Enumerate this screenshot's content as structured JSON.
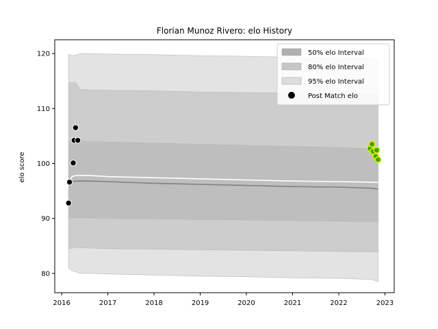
{
  "chart_data": {
    "type": "line",
    "title": "Florian Munoz Rivero: elo History",
    "xlabel": "",
    "ylabel": "elo score",
    "xlim": [
      2015.85,
      2023.2
    ],
    "ylim": [
      76.5,
      122.5
    ],
    "xticks": [
      2016,
      2017,
      2018,
      2019,
      2020,
      2021,
      2022,
      2023
    ],
    "yticks": [
      80,
      90,
      100,
      110,
      120
    ],
    "grid": false,
    "legend": {
      "placement": "top-right",
      "entries": [
        {
          "label": "50% elo Interval",
          "kind": "patch",
          "color": "#b0b0b0"
        },
        {
          "label": "80% elo Interval",
          "kind": "patch",
          "color": "#c6c6c6"
        },
        {
          "label": "95% elo Interval",
          "kind": "patch",
          "color": "#dedede"
        },
        {
          "label": "Post Match elo",
          "kind": "marker",
          "color": "#000000"
        }
      ]
    },
    "x": [
      2016.15,
      2016.22,
      2016.3,
      2016.4,
      2016.6,
      2017,
      2018,
      2019,
      2020,
      2021,
      2022,
      2022.7,
      2022.8,
      2022.85
    ],
    "series": [
      {
        "name": "95% elo Interval",
        "color": "#e3e3e3",
        "upper": [
          119.9,
          119.6,
          119.7,
          120.0,
          120.0,
          119.9,
          119.8,
          119.6,
          119.5,
          119.3,
          119.2,
          119.1,
          119.0,
          118.8
        ],
        "lower": [
          80.9,
          80.5,
          80.3,
          80.0,
          80.0,
          79.9,
          79.7,
          79.5,
          79.4,
          79.2,
          79.1,
          78.9,
          78.7,
          78.5
        ]
      },
      {
        "name": "80% elo Interval",
        "color": "#cdcdcd",
        "upper": [
          114.7,
          114.7,
          114.7,
          113.5,
          113.4,
          113.3,
          113.2,
          113.0,
          112.9,
          112.8,
          112.7,
          112.6,
          112.5,
          112.4
        ],
        "lower": [
          84.4,
          84.6,
          84.7,
          84.7,
          84.6,
          84.5,
          84.4,
          84.3,
          84.2,
          84.1,
          84.0,
          83.9,
          83.9,
          83.8
        ]
      },
      {
        "name": "50% elo Interval",
        "color": "#bebebe",
        "upper": [
          104.1,
          104.2,
          104.2,
          104.1,
          104.0,
          103.9,
          103.7,
          103.5,
          103.3,
          103.1,
          102.9,
          102.7,
          102.6,
          102.6
        ],
        "lower": [
          90.0,
          90.1,
          90.1,
          90.1,
          90.1,
          90.0,
          89.9,
          89.8,
          89.7,
          89.6,
          89.5,
          89.4,
          89.4,
          89.4
        ]
      }
    ],
    "mean_line": [
      96.3,
      97.6,
      97.8,
      97.8,
      97.8,
      97.6,
      97.4,
      97.2,
      97.0,
      96.8,
      96.7,
      96.6,
      96.6,
      96.5
    ],
    "median_line": [
      96.6,
      96.7,
      96.8,
      96.8,
      96.8,
      96.7,
      96.4,
      96.2,
      96.0,
      95.8,
      95.7,
      95.5,
      95.4,
      95.3
    ],
    "points_black": [
      {
        "x": 2016.15,
        "y": 92.8
      },
      {
        "x": 2016.17,
        "y": 96.6
      },
      {
        "x": 2016.25,
        "y": 100.1
      },
      {
        "x": 2016.27,
        "y": 104.2
      },
      {
        "x": 2016.3,
        "y": 106.5
      },
      {
        "x": 2016.35,
        "y": 104.2
      }
    ],
    "points_green": [
      {
        "x": 2022.68,
        "y": 102.7
      },
      {
        "x": 2022.72,
        "y": 103.5
      },
      {
        "x": 2022.74,
        "y": 102.2
      },
      {
        "x": 2022.8,
        "y": 101.3
      },
      {
        "x": 2022.82,
        "y": 102.4
      },
      {
        "x": 2022.85,
        "y": 100.7
      }
    ]
  }
}
